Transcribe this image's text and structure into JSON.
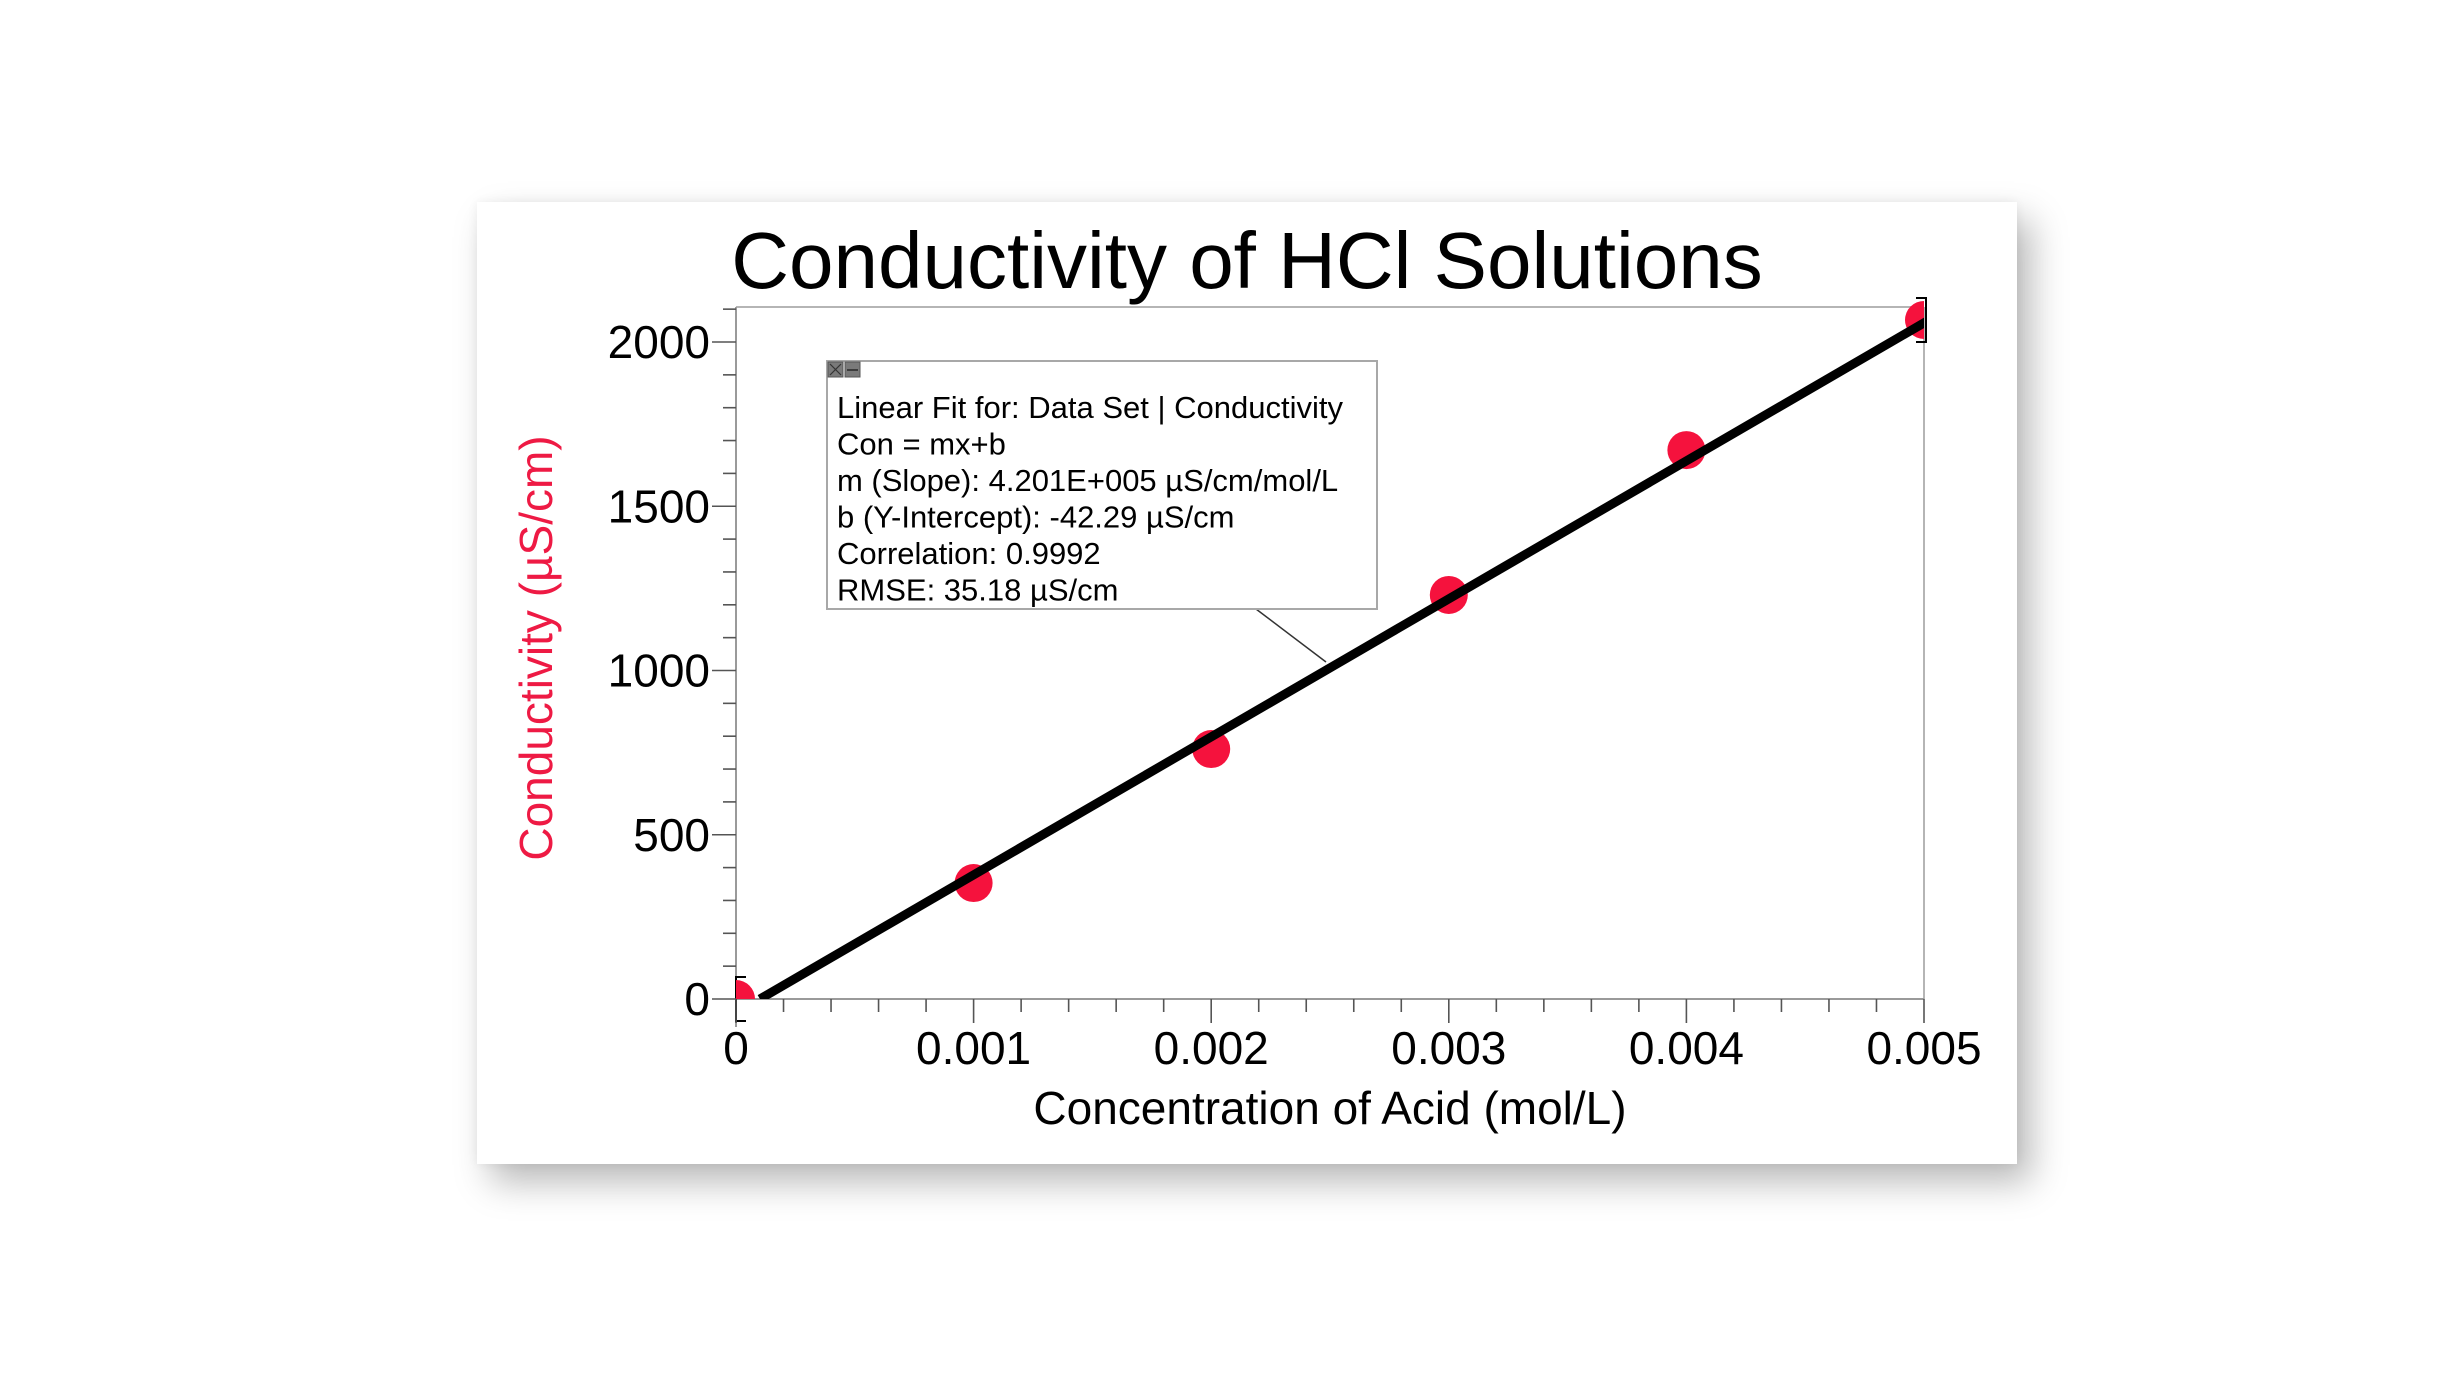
{
  "chart_data": {
    "type": "scatter",
    "title": "Conductivity of HCl Solutions",
    "xlabel": "Concentration of Acid (mol/L)",
    "ylabel": "Conductivity (µS/cm)",
    "xlim": [
      0,
      0.005
    ],
    "ylim": [
      0,
      2106
    ],
    "x_ticks": [
      "0",
      "0.001",
      "0.002",
      "0.003",
      "0.004",
      "0.005"
    ],
    "x_tick_values": [
      0,
      0.001,
      0.002,
      0.003,
      0.004,
      0.005
    ],
    "y_ticks": [
      "0",
      "500",
      "1000",
      "1500",
      "2000"
    ],
    "y_tick_values": [
      0,
      500,
      1000,
      1500,
      2000
    ],
    "x_minor_step": 0.0002,
    "y_minor_step": 100,
    "grid": false,
    "legend": null,
    "series": [
      {
        "name": "Data Set | Conductivity",
        "type": "scatter",
        "color": "#F5123D",
        "x": [
          0,
          0.001,
          0.002,
          0.003,
          0.004,
          0.005
        ],
        "y": [
          0,
          353,
          761,
          1230,
          1671,
          2067
        ]
      },
      {
        "name": "Linear Fit",
        "type": "line",
        "color": "#000000",
        "slope": 420100,
        "intercept": -42.29
      }
    ],
    "annotation": {
      "lines": [
        "Linear Fit for: Data Set | Conductivity",
        "Con = mx+b",
        "m (Slope): 4.201E+005 µS/cm/mol/L",
        "b (Y-Intercept): -42.29 µS/cm",
        "Correlation: 0.9992",
        "RMSE: 35.18 µS/cm"
      ],
      "buttons": [
        "close-icon",
        "minimize-icon"
      ]
    }
  },
  "colors": {
    "marker": "#F5123D",
    "ylabel": "#EE1A44",
    "fit_line": "#000000",
    "axis": "#9a9a9a"
  }
}
